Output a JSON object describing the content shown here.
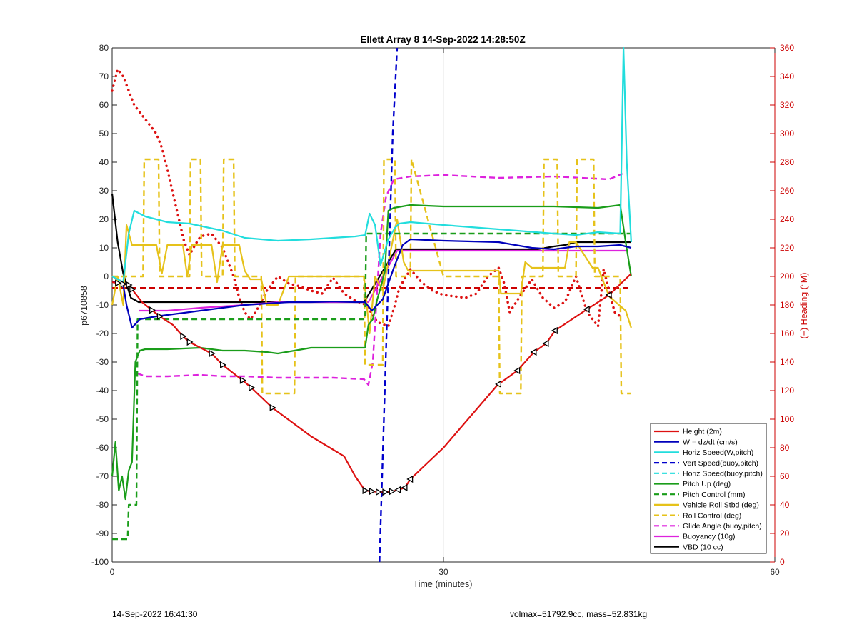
{
  "footer": {
    "left": "14-Sep-2022 16:41:30",
    "right": "volmax=51792.9cc, mass=52.831kg"
  },
  "chart_data": {
    "type": "line",
    "title": "Ellett Array 8 14-Sep-2022 14:28:50Z",
    "xlabel": "Time (minutes)",
    "ylabel": "p6710858",
    "y2label": "(+) Heading (°M)",
    "xlim": [
      0,
      60
    ],
    "ylim": [
      -100,
      80
    ],
    "y2lim": [
      0,
      360
    ],
    "xticks": [
      0,
      30,
      60
    ],
    "yticks": [
      -100,
      -90,
      -80,
      -70,
      -60,
      -50,
      -40,
      -30,
      -20,
      -10,
      0,
      10,
      20,
      30,
      40,
      50,
      60,
      70,
      80
    ],
    "y2ticks": [
      0,
      20,
      40,
      60,
      80,
      100,
      120,
      140,
      160,
      180,
      200,
      220,
      240,
      260,
      280,
      300,
      320,
      340,
      360
    ],
    "grid": "x-only",
    "legend_position": "bottom-right",
    "series": [
      {
        "name": "Height (2m)",
        "color": "#dd1111",
        "style": "solid",
        "x": [
          0,
          1.5,
          2.7,
          4.3,
          5.5,
          6.4,
          7,
          9,
          10,
          12,
          12.6,
          14.5,
          18,
          21,
          22,
          22.9,
          23.6,
          24.3,
          25,
          25.5,
          26,
          26.5,
          27,
          30,
          34.9,
          36.7,
          38.2,
          39.3,
          40.1,
          43,
          45,
          47
        ],
        "y": [
          -2,
          -3,
          -9,
          -14,
          -17,
          -21,
          -23,
          -27,
          -31,
          -37,
          -39,
          -46,
          -56,
          -63,
          -70,
          -75,
          -75.3,
          -75.6,
          -75.5,
          -75.2,
          -74.6,
          -74,
          -71,
          -60,
          -38,
          -33,
          -26.5,
          -23.5,
          -19,
          -11.5,
          -6.5,
          1
        ]
      },
      {
        "name": "W = dz/dt (cm/s)",
        "color": "#0000bb",
        "style": "solid",
        "x": [
          0,
          0.5,
          1,
          1.3,
          1.8,
          2.5,
          4,
          6,
          8,
          10,
          12,
          14,
          16,
          18,
          20,
          22,
          22.9,
          23.5,
          24.5,
          25.5,
          26.3,
          27,
          30,
          35,
          38,
          40,
          42,
          44,
          46,
          47
        ],
        "y": [
          -2,
          -2,
          -3,
          -10,
          -18,
          -15,
          -14,
          -13,
          -12,
          -11,
          -10,
          -9.5,
          -9,
          -9,
          -8.8,
          -9,
          -9,
          -12,
          -8,
          3,
          11,
          13,
          12.5,
          12,
          10,
          9.5,
          10.5,
          10.5,
          11,
          10
        ]
      },
      {
        "name": "Horiz Speed(W,pitch)",
        "color": "#22dddd",
        "style": "solid",
        "x": [
          0,
          0.5,
          1,
          1.5,
          2,
          3,
          5,
          7,
          10,
          12,
          15,
          18,
          20,
          22,
          22.9,
          23.3,
          23.8,
          24.3,
          25,
          25.6,
          26,
          27,
          30,
          35,
          40,
          42,
          44,
          46,
          46.3,
          46.6,
          47
        ],
        "y": [
          0,
          -1,
          -2,
          15,
          23,
          21,
          19,
          18.5,
          16,
          13.5,
          12.5,
          13,
          13.5,
          14,
          14.5,
          22,
          18,
          4,
          13,
          17,
          18.5,
          19,
          18,
          16.5,
          15,
          14.5,
          15.5,
          15,
          80,
          40,
          12
        ]
      },
      {
        "name": "Vert Speed(buoy,pitch)",
        "color": "#0000cc",
        "style": "dashed",
        "x": [
          24.2,
          24.6,
          25,
          25.4,
          25.8
        ],
        "y": [
          -100,
          -50,
          0,
          50,
          80
        ]
      },
      {
        "name": "Horiz Speed(buoy,pitch)",
        "color": "#22dddd",
        "style": "dashed",
        "x": [],
        "y": []
      },
      {
        "name": "Pitch Up (deg)",
        "color": "#1a9d1a",
        "style": "solid",
        "x": [
          0,
          0.3,
          0.6,
          0.9,
          1.2,
          1.5,
          1.8,
          2.1,
          2.5,
          3,
          5,
          8,
          10,
          12,
          14,
          15,
          18,
          22,
          22.9,
          23.2,
          23.6,
          24,
          24.3,
          24.7,
          25,
          25.5,
          27,
          30,
          35,
          40,
          44,
          46,
          46.5,
          47
        ],
        "y": [
          -70,
          -58,
          -75,
          -70,
          -78,
          -68,
          -65,
          -30,
          -26,
          -25.5,
          -25.5,
          -25,
          -26,
          -26,
          -26.5,
          -27,
          -25,
          -25,
          -25,
          -17,
          -15,
          -8,
          -4,
          2,
          23,
          24,
          25,
          24.5,
          24.5,
          24.5,
          24,
          25,
          12,
          0
        ]
      },
      {
        "name": "Pitch Control (mm)",
        "color": "#1a9d1a",
        "style": "dashed",
        "x": [
          0,
          1.4,
          1.5,
          2.2,
          2.3,
          15,
          22.9,
          23,
          25.5,
          47
        ],
        "y": [
          -92,
          -92,
          -80,
          -80,
          -15,
          -15,
          -15,
          15,
          15,
          15
        ]
      },
      {
        "name": "Vehicle Roll Stbd (deg)",
        "color": "#e6c21a",
        "style": "solid",
        "x": [
          0,
          0.5,
          1,
          1.3,
          1.8,
          4,
          4.5,
          5,
          6.4,
          6.8,
          7.2,
          9,
          9.5,
          10,
          11.5,
          12,
          12.5,
          13.5,
          14,
          15,
          16,
          20,
          22.8,
          23.3,
          23.8,
          24.5,
          25,
          25.8,
          26.4,
          26.8,
          30,
          35,
          35.2,
          35.6,
          37,
          37.4,
          38,
          41,
          41.4,
          42,
          43.5,
          44,
          45,
          46.5,
          47
        ],
        "y": [
          -10,
          0,
          -10,
          18,
          11,
          11,
          1,
          11,
          11,
          0,
          11,
          11,
          -2,
          11,
          11,
          2,
          -1,
          -1,
          -10,
          -10,
          0,
          0,
          0,
          -20,
          0,
          -5,
          5,
          20,
          5,
          2,
          2,
          2,
          -6,
          -6,
          -6,
          5,
          3,
          3,
          12,
          12,
          3,
          3,
          -7,
          -12,
          -18
        ]
      },
      {
        "name": "Roll Control (deg)",
        "color": "#e6c21a",
        "style": "dashed",
        "x": [
          0,
          2.8,
          2.9,
          4.2,
          4.3,
          7,
          7.1,
          8,
          8.1,
          10,
          10.1,
          11,
          11.1,
          13.5,
          13.6,
          16.5,
          16.6,
          22.8,
          22.9,
          24.5,
          24.6,
          25.6,
          25.7,
          27,
          27.1,
          30,
          35,
          35.1,
          37,
          37.1,
          39,
          39.1,
          40.3,
          40.4,
          42,
          42.1,
          43.6,
          43.7,
          46,
          46.1,
          47
        ],
        "y": [
          0,
          0,
          41,
          41,
          0,
          0,
          41,
          41,
          0,
          0,
          41,
          41,
          0,
          0,
          -41,
          -41,
          0,
          0,
          -31,
          -31,
          41,
          41,
          0,
          0,
          41,
          0,
          0,
          -41,
          -41,
          0,
          0,
          41,
          41,
          0,
          0,
          41,
          41,
          0,
          0,
          -41,
          -41
        ]
      },
      {
        "name": "Glide Angle (buoy,pitch)",
        "color": "#dd22dd",
        "style": "dashed",
        "x": [
          2.3,
          3,
          5,
          8,
          10,
          12,
          15,
          18,
          20,
          22.8,
          23.2,
          23.6,
          24.3,
          24.8,
          25.5,
          27,
          30,
          35,
          40,
          45,
          46.2
        ],
        "y": [
          -34,
          -35,
          -35,
          -34.5,
          -35,
          -35,
          -35.5,
          -35.5,
          -35.5,
          -36,
          -38,
          -30,
          15,
          28,
          34,
          35,
          35.5,
          34.5,
          35,
          34,
          36
        ]
      },
      {
        "name": "Buoyancy (10g)",
        "color": "#dd22dd",
        "style": "solid",
        "x": [
          2.4,
          5,
          8,
          10,
          12,
          15,
          18,
          22.8,
          23.2,
          25.8,
          30,
          35,
          40,
          42,
          46.5
        ],
        "y": [
          -12,
          -12,
          -11,
          -10.5,
          -10,
          -9,
          -9,
          -9,
          -9,
          9,
          9,
          9,
          9,
          9,
          9
        ]
      },
      {
        "name": "VBD (10 cc)",
        "color": "#000000",
        "style": "solid",
        "x": [
          0,
          0.5,
          1,
          1.4,
          1.7,
          2.4,
          6,
          12,
          18,
          22.8,
          25.7,
          35,
          38.5,
          40,
          41,
          42,
          47
        ],
        "y": [
          29,
          12,
          1,
          -4,
          -7.5,
          -9,
          -9,
          -9,
          -9,
          -9,
          9.5,
          9.5,
          9.5,
          10.5,
          11,
          12,
          12
        ]
      }
    ],
    "heading_series": {
      "name": "Heading (°M)",
      "axis": "right",
      "color": "#dd1111",
      "style": "dotted",
      "x": [
        0,
        0.5,
        1,
        2,
        3,
        4,
        4.5,
        5,
        5.5,
        6.5,
        7,
        7.5,
        8,
        9,
        10,
        11,
        11.5,
        12,
        12.5,
        13,
        14,
        15,
        16,
        17,
        18,
        19,
        20,
        21,
        22,
        23,
        24,
        25,
        25.6,
        26,
        27,
        28,
        29,
        30,
        31,
        32,
        33,
        34,
        35,
        35.5,
        36,
        37,
        38,
        39,
        40,
        41,
        42,
        43,
        44,
        44.5,
        45,
        45.5,
        46
      ],
      "y": [
        330,
        345,
        340,
        320,
        310,
        300,
        290,
        275,
        258,
        225,
        215,
        222,
        228,
        230,
        220,
        200,
        185,
        175,
        170,
        175,
        190,
        200,
        195,
        193,
        190,
        188,
        199,
        188,
        183,
        180,
        168,
        165,
        180,
        192,
        205,
        196,
        190,
        187,
        186,
        185,
        188,
        200,
        206,
        195,
        175,
        187,
        198,
        185,
        178,
        182,
        200,
        175,
        165,
        205,
        190,
        175,
        172
      ]
    },
    "constant_lines": [
      {
        "axis": "right",
        "value": 192,
        "color": "#cc0000",
        "style": "dashed"
      }
    ]
  }
}
